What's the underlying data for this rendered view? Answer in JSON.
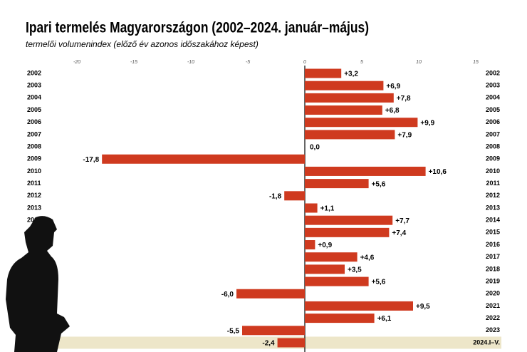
{
  "chart_data": {
    "type": "barh",
    "title": "Ipari termelés Magyarországon (2002–2024. január–május)",
    "subtitle": "termelői volumenindex (előző év azonos időszakához képest)",
    "categories": [
      "2002",
      "2003",
      "2004",
      "2005",
      "2006",
      "2007",
      "2008",
      "2009",
      "2010",
      "2011",
      "2012",
      "2013",
      "2014",
      "2015",
      "2016",
      "2017",
      "2018",
      "2019",
      "2020",
      "2021",
      "2022",
      "2023",
      "2024.I–V."
    ],
    "values": [
      3.2,
      6.9,
      7.8,
      6.8,
      9.9,
      7.9,
      0.0,
      -17.8,
      10.6,
      5.6,
      -1.8,
      1.1,
      7.7,
      7.4,
      0.9,
      4.6,
      3.5,
      5.6,
      -6.0,
      9.5,
      6.1,
      -5.5,
      -2.4
    ],
    "value_labels": [
      "+3,2",
      "+6,9",
      "+7,8",
      "+6,8",
      "+9,9",
      "+7,9",
      "0,0",
      "-17,8",
      "+10,6",
      "+5,6",
      "-1,8",
      "+1,1",
      "+7,7",
      "+7,4",
      "+0,9",
      "+4,6",
      "+3,5",
      "+5,6",
      "-6,0",
      "+9,5",
      "+6,1",
      "-5,5",
      "-2,4"
    ],
    "color": "#cf3a1f",
    "xlim": [
      -20,
      15
    ],
    "xticks": [
      -20,
      -15,
      -10,
      -5,
      0,
      5,
      10,
      15
    ]
  }
}
